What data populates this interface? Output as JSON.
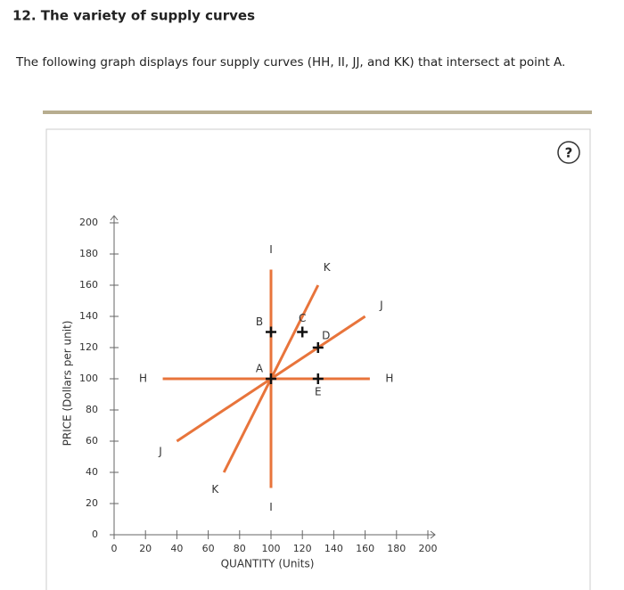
{
  "header": {
    "title": "12. The variety of supply curves"
  },
  "description": "The following graph displays four supply curves (HH, II, JJ, and KK) that intersect at point A.",
  "help_icon": "?",
  "chart_data": {
    "type": "line",
    "x_label": "QUANTITY (Units)",
    "y_label": "PRICE (Dollars per unit)",
    "xlim": [
      0,
      200
    ],
    "ylim": [
      0,
      200
    ],
    "xticks": [
      0,
      20,
      40,
      60,
      80,
      100,
      120,
      140,
      160,
      180,
      200
    ],
    "yticks": [
      0,
      20,
      40,
      60,
      80,
      100,
      120,
      140,
      160,
      180,
      200
    ],
    "series": [
      {
        "name": "H",
        "color": "#e8743b",
        "x": [
          31,
          163
        ],
        "values": [
          100,
          100
        ]
      },
      {
        "name": "I",
        "color": "#e8743b",
        "x": [
          100,
          100
        ],
        "values": [
          30,
          170
        ]
      },
      {
        "name": "J",
        "color": "#e8743b",
        "x": [
          40,
          160
        ],
        "values": [
          60,
          140
        ]
      },
      {
        "name": "K",
        "color": "#e8743b",
        "x": [
          70,
          130
        ],
        "values": [
          40,
          160
        ]
      }
    ],
    "points": [
      {
        "name": "A",
        "x": 100,
        "y": 100
      },
      {
        "name": "B",
        "x": 100,
        "y": 130
      },
      {
        "name": "C",
        "x": 120,
        "y": 130
      },
      {
        "name": "D",
        "x": 130,
        "y": 120
      },
      {
        "name": "E",
        "x": 130,
        "y": 100
      }
    ]
  }
}
